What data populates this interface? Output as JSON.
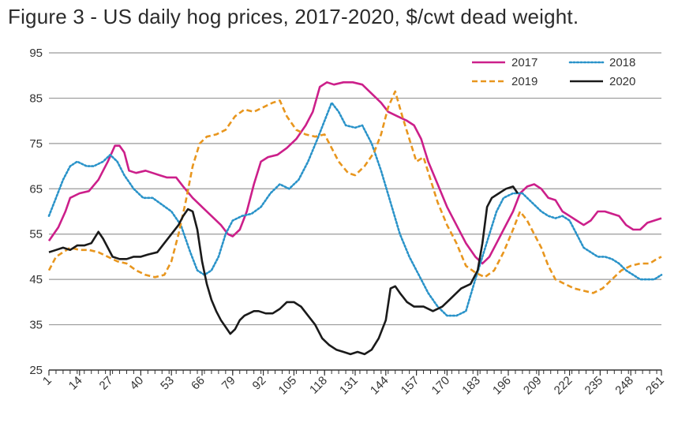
{
  "chart_data": {
    "type": "line",
    "title": "Figure 3 - US daily hog prices, 2017-2020, $/cwt dead weight.",
    "xlabel": "",
    "ylabel": "",
    "xlim": [
      1,
      261
    ],
    "ylim": [
      25,
      95
    ],
    "y_ticks": [
      "95",
      "85",
      "75",
      "65",
      "55",
      "45",
      "35",
      "25"
    ],
    "y_tick_values": [
      95,
      85,
      75,
      65,
      55,
      45,
      35,
      25
    ],
    "x_ticks": [
      "1",
      "14",
      "27",
      "40",
      "53",
      "66",
      "79",
      "92",
      "105",
      "118",
      "131",
      "144",
      "157",
      "170",
      "183",
      "196",
      "209",
      "222",
      "235",
      "248",
      "261"
    ],
    "x_tick_values": [
      1,
      14,
      27,
      40,
      53,
      66,
      79,
      92,
      105,
      118,
      131,
      144,
      157,
      170,
      183,
      196,
      209,
      222,
      235,
      248,
      261
    ],
    "grid": true,
    "legend_position": "top-right",
    "series": [
      {
        "name": "2017",
        "color": "#cc1f8a",
        "style": "solid",
        "points": [
          [
            1,
            53.5
          ],
          [
            5,
            56.5
          ],
          [
            8,
            60
          ],
          [
            10,
            63
          ],
          [
            14,
            64
          ],
          [
            18,
            64.5
          ],
          [
            22,
            67
          ],
          [
            26,
            71
          ],
          [
            29,
            74.5
          ],
          [
            31,
            74.5
          ],
          [
            33,
            73
          ],
          [
            35,
            69
          ],
          [
            38,
            68.5
          ],
          [
            42,
            69
          ],
          [
            45,
            68.5
          ],
          [
            48,
            68
          ],
          [
            51,
            67.5
          ],
          [
            55,
            67.5
          ],
          [
            58,
            65.5
          ],
          [
            62,
            63
          ],
          [
            66,
            61
          ],
          [
            70,
            59
          ],
          [
            74,
            57
          ],
          [
            77,
            55
          ],
          [
            79,
            54.5
          ],
          [
            82,
            56
          ],
          [
            85,
            60
          ],
          [
            88,
            66
          ],
          [
            91,
            71
          ],
          [
            94,
            72
          ],
          [
            98,
            72.5
          ],
          [
            102,
            74
          ],
          [
            106,
            76
          ],
          [
            110,
            79
          ],
          [
            113,
            82
          ],
          [
            116,
            87.5
          ],
          [
            119,
            88.5
          ],
          [
            122,
            88
          ],
          [
            126,
            88.5
          ],
          [
            130,
            88.5
          ],
          [
            134,
            88
          ],
          [
            138,
            86
          ],
          [
            142,
            84
          ],
          [
            145,
            82
          ],
          [
            149,
            81
          ],
          [
            153,
            80
          ],
          [
            156,
            79
          ],
          [
            159,
            76
          ],
          [
            162,
            71
          ],
          [
            166,
            66
          ],
          [
            170,
            61
          ],
          [
            174,
            57
          ],
          [
            178,
            53
          ],
          [
            182,
            50
          ],
          [
            185,
            48.5
          ],
          [
            188,
            50
          ],
          [
            191,
            53
          ],
          [
            194,
            56
          ],
          [
            198,
            60
          ],
          [
            201,
            64
          ],
          [
            204,
            65.5
          ],
          [
            207,
            66
          ],
          [
            210,
            65
          ],
          [
            213,
            63
          ],
          [
            216,
            62.5
          ],
          [
            219,
            60
          ],
          [
            222,
            59
          ],
          [
            225,
            58
          ],
          [
            228,
            57
          ],
          [
            231,
            58
          ],
          [
            234,
            60
          ],
          [
            237,
            60
          ],
          [
            240,
            59.5
          ],
          [
            243,
            59
          ],
          [
            246,
            57
          ],
          [
            249,
            56
          ],
          [
            252,
            56
          ],
          [
            255,
            57.5
          ],
          [
            258,
            58
          ],
          [
            261,
            58.5
          ]
        ]
      },
      {
        "name": "2018",
        "color": "#2a93c9",
        "style": "dotted",
        "points": [
          [
            1,
            59
          ],
          [
            4,
            63
          ],
          [
            7,
            67
          ],
          [
            10,
            70
          ],
          [
            13,
            71
          ],
          [
            17,
            70
          ],
          [
            20,
            70
          ],
          [
            24,
            71
          ],
          [
            27,
            72.5
          ],
          [
            30,
            71
          ],
          [
            33,
            68
          ],
          [
            37,
            65
          ],
          [
            41,
            63
          ],
          [
            45,
            63
          ],
          [
            49,
            61.5
          ],
          [
            53,
            60
          ],
          [
            57,
            57
          ],
          [
            61,
            51
          ],
          [
            64,
            47
          ],
          [
            67,
            46
          ],
          [
            70,
            47
          ],
          [
            73,
            50
          ],
          [
            76,
            55
          ],
          [
            79,
            58
          ],
          [
            83,
            59
          ],
          [
            87,
            59.5
          ],
          [
            91,
            61
          ],
          [
            95,
            64
          ],
          [
            99,
            66
          ],
          [
            103,
            65
          ],
          [
            107,
            67
          ],
          [
            111,
            71
          ],
          [
            115,
            76
          ],
          [
            118,
            80
          ],
          [
            121,
            84
          ],
          [
            124,
            82
          ],
          [
            127,
            79
          ],
          [
            131,
            78.5
          ],
          [
            134,
            79
          ],
          [
            138,
            75
          ],
          [
            142,
            69
          ],
          [
            146,
            62
          ],
          [
            150,
            55
          ],
          [
            154,
            50
          ],
          [
            158,
            46
          ],
          [
            162,
            42
          ],
          [
            166,
            39
          ],
          [
            170,
            37
          ],
          [
            174,
            37
          ],
          [
            178,
            38
          ],
          [
            182,
            45
          ],
          [
            185,
            50
          ],
          [
            188,
            55
          ],
          [
            191,
            60
          ],
          [
            194,
            63
          ],
          [
            198,
            64
          ],
          [
            202,
            64
          ],
          [
            206,
            62
          ],
          [
            210,
            60
          ],
          [
            213,
            59
          ],
          [
            216,
            58.5
          ],
          [
            219,
            59
          ],
          [
            222,
            58
          ],
          [
            225,
            55
          ],
          [
            228,
            52
          ],
          [
            231,
            51
          ],
          [
            234,
            50
          ],
          [
            237,
            50
          ],
          [
            240,
            49.5
          ],
          [
            243,
            48.5
          ],
          [
            246,
            47
          ],
          [
            249,
            46
          ],
          [
            252,
            45
          ],
          [
            255,
            45
          ],
          [
            258,
            45
          ],
          [
            261,
            46
          ]
        ]
      },
      {
        "name": "2019",
        "color": "#e8961e",
        "style": "dashed",
        "points": [
          [
            1,
            47
          ],
          [
            4,
            50
          ],
          [
            7,
            51
          ],
          [
            10,
            52
          ],
          [
            14,
            51.5
          ],
          [
            18,
            51.5
          ],
          [
            22,
            51
          ],
          [
            26,
            50
          ],
          [
            30,
            49
          ],
          [
            34,
            48.5
          ],
          [
            38,
            47
          ],
          [
            42,
            46
          ],
          [
            46,
            45.5
          ],
          [
            50,
            46
          ],
          [
            53,
            49
          ],
          [
            56,
            55
          ],
          [
            59,
            62
          ],
          [
            62,
            70
          ],
          [
            65,
            75
          ],
          [
            68,
            76.5
          ],
          [
            72,
            77
          ],
          [
            76,
            78
          ],
          [
            80,
            81
          ],
          [
            84,
            82.5
          ],
          [
            88,
            82
          ],
          [
            92,
            83
          ],
          [
            96,
            84
          ],
          [
            99,
            84.5
          ],
          [
            102,
            81
          ],
          [
            106,
            78
          ],
          [
            110,
            77
          ],
          [
            114,
            76.5
          ],
          [
            118,
            77
          ],
          [
            121,
            74
          ],
          [
            124,
            71
          ],
          [
            128,
            68.5
          ],
          [
            131,
            68
          ],
          [
            135,
            70
          ],
          [
            139,
            73
          ],
          [
            142,
            77
          ],
          [
            145,
            83
          ],
          [
            148,
            86.5
          ],
          [
            151,
            81
          ],
          [
            154,
            76
          ],
          [
            157,
            71
          ],
          [
            160,
            72
          ],
          [
            163,
            67
          ],
          [
            166,
            62
          ],
          [
            170,
            57
          ],
          [
            174,
            53
          ],
          [
            178,
            48
          ],
          [
            182,
            46.5
          ],
          [
            186,
            45.5
          ],
          [
            190,
            47
          ],
          [
            194,
            51
          ],
          [
            198,
            56
          ],
          [
            201,
            60
          ],
          [
            204,
            58
          ],
          [
            207,
            55
          ],
          [
            210,
            52
          ],
          [
            213,
            48
          ],
          [
            216,
            45
          ],
          [
            220,
            44
          ],
          [
            224,
            43
          ],
          [
            228,
            42.5
          ],
          [
            232,
            42
          ],
          [
            236,
            43
          ],
          [
            240,
            45
          ],
          [
            244,
            47
          ],
          [
            248,
            48
          ],
          [
            252,
            48.5
          ],
          [
            256,
            48.5
          ],
          [
            259,
            49.5
          ],
          [
            261,
            50
          ]
        ]
      },
      {
        "name": "2020",
        "color": "#1a1a1a",
        "style": "solid",
        "points": [
          [
            1,
            51
          ],
          [
            4,
            51.5
          ],
          [
            7,
            52
          ],
          [
            10,
            51.5
          ],
          [
            13,
            52.5
          ],
          [
            16,
            52.5
          ],
          [
            19,
            53
          ],
          [
            22,
            55.5
          ],
          [
            24,
            54
          ],
          [
            26,
            52
          ],
          [
            28,
            50
          ],
          [
            31,
            49.5
          ],
          [
            34,
            49.5
          ],
          [
            37,
            50
          ],
          [
            40,
            50
          ],
          [
            43,
            50.5
          ],
          [
            47,
            51
          ],
          [
            50,
            53
          ],
          [
            53,
            55
          ],
          [
            56,
            57
          ],
          [
            58,
            59
          ],
          [
            60,
            60.5
          ],
          [
            62,
            60
          ],
          [
            64,
            56
          ],
          [
            66,
            49
          ],
          [
            68,
            44
          ],
          [
            70,
            40.5
          ],
          [
            72,
            38
          ],
          [
            74,
            36
          ],
          [
            76,
            34.5
          ],
          [
            78,
            33
          ],
          [
            80,
            34
          ],
          [
            82,
            36
          ],
          [
            84,
            37
          ],
          [
            86,
            37.5
          ],
          [
            88,
            38
          ],
          [
            90,
            38
          ],
          [
            93,
            37.5
          ],
          [
            96,
            37.5
          ],
          [
            99,
            38.5
          ],
          [
            102,
            40
          ],
          [
            105,
            40
          ],
          [
            108,
            39
          ],
          [
            111,
            37
          ],
          [
            114,
            35
          ],
          [
            117,
            32
          ],
          [
            120,
            30.5
          ],
          [
            123,
            29.5
          ],
          [
            126,
            29
          ],
          [
            129,
            28.5
          ],
          [
            132,
            29
          ],
          [
            135,
            28.5
          ],
          [
            138,
            29.5
          ],
          [
            141,
            32
          ],
          [
            144,
            36
          ],
          [
            146,
            43
          ],
          [
            148,
            43.5
          ],
          [
            150,
            42
          ],
          [
            153,
            40
          ],
          [
            156,
            39
          ],
          [
            160,
            39
          ],
          [
            164,
            38
          ],
          [
            168,
            39
          ],
          [
            172,
            41
          ],
          [
            176,
            43
          ],
          [
            180,
            44
          ],
          [
            183,
            47
          ],
          [
            185,
            53
          ],
          [
            187,
            61
          ],
          [
            189,
            63
          ],
          [
            192,
            64
          ],
          [
            195,
            65
          ],
          [
            198,
            65.5
          ],
          [
            200,
            64
          ]
        ]
      }
    ]
  }
}
